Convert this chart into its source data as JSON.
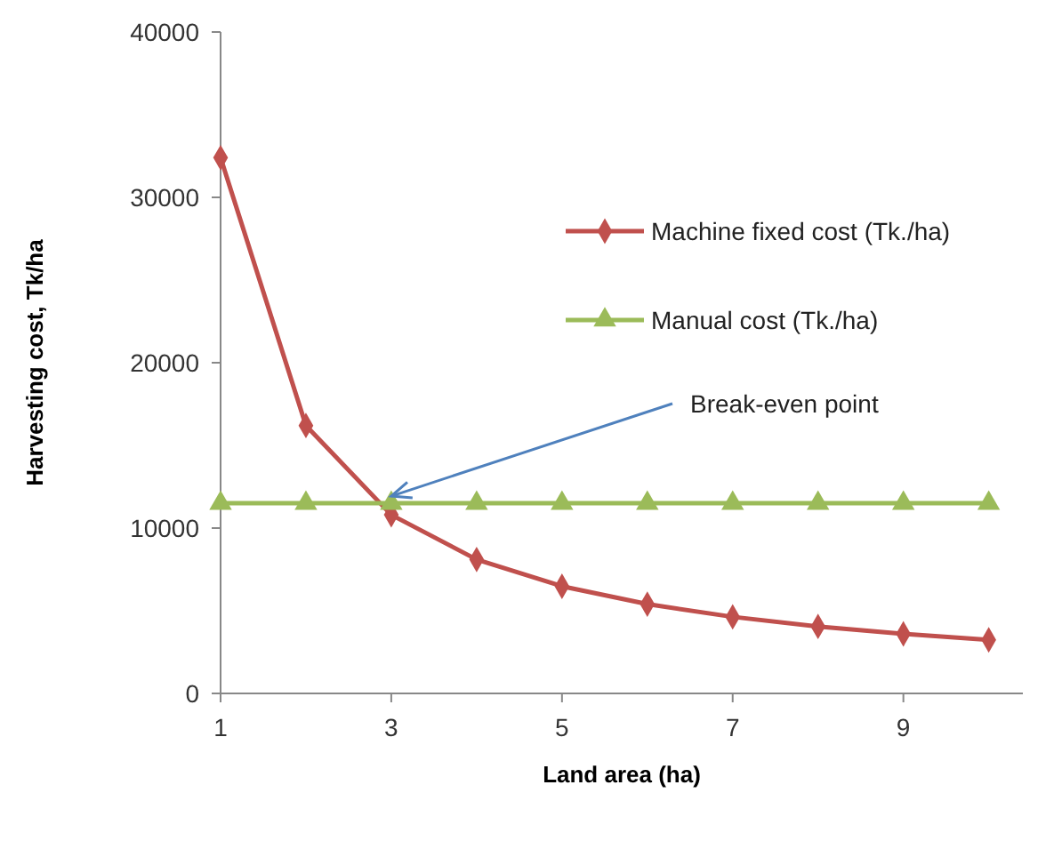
{
  "chart_data": {
    "type": "line",
    "xlabel": "Land area (ha)",
    "ylabel": "Harvesting cost, Tk/ha",
    "x": [
      1,
      2,
      3,
      4,
      5,
      6,
      7,
      8,
      9,
      10
    ],
    "series": [
      {
        "name": "Machine fixed cost (Tk./ha)",
        "color": "#c0504d",
        "marker": "diamond",
        "values": [
          32400,
          16200,
          10800,
          8100,
          6480,
          5400,
          4630,
          4050,
          3600,
          3240
        ]
      },
      {
        "name": "Manual cost (Tk./ha)",
        "color": "#9bbb59",
        "marker": "triangle",
        "values": [
          11500,
          11500,
          11500,
          11500,
          11500,
          11500,
          11500,
          11500,
          11500,
          11500
        ]
      }
    ],
    "xlim": [
      1,
      10.4
    ],
    "xticks": [
      1,
      3,
      5,
      7,
      9
    ],
    "ylim": [
      0,
      40000
    ],
    "yticks": [
      0,
      10000,
      20000,
      30000,
      40000
    ],
    "grid": false,
    "legend": "right",
    "annotations": [
      {
        "text": "Break-even point",
        "x": 3,
        "y": 11500
      }
    ]
  }
}
